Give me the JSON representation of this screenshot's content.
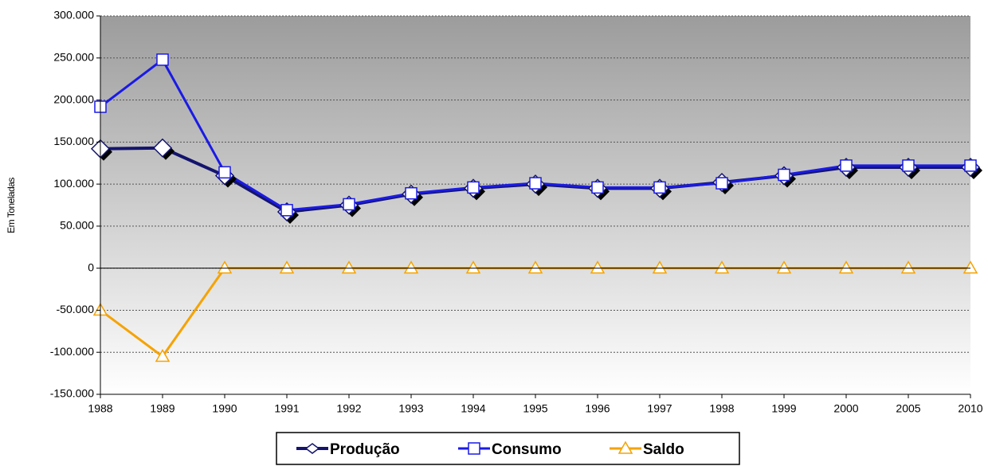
{
  "chart_data": {
    "type": "line",
    "y_label": "Em Toneladas",
    "categories": [
      "1988",
      "1989",
      "1990",
      "1991",
      "1992",
      "1993",
      "1994",
      "1995",
      "1996",
      "1997",
      "1998",
      "1999",
      "2000",
      "2005",
      "2010"
    ],
    "series": [
      {
        "name": "Produção",
        "color": "#14146e",
        "marker": "diamond",
        "values": [
          142000,
          143000,
          110000,
          67000,
          75000,
          88000,
          95000,
          100000,
          95000,
          95000,
          102000,
          110000,
          120000,
          120000,
          120000
        ]
      },
      {
        "name": "Consumo",
        "color": "#1a1ae6",
        "marker": "square",
        "values": [
          192000,
          248000,
          114000,
          69000,
          76000,
          89000,
          96000,
          101000,
          96000,
          96000,
          101000,
          111000,
          122000,
          122000,
          122000
        ]
      },
      {
        "name": "Saldo",
        "color": "#f5a300",
        "marker": "triangle",
        "values": [
          -50000,
          -105000,
          0,
          0,
          0,
          0,
          0,
          0,
          0,
          0,
          0,
          0,
          0,
          0,
          0
        ]
      }
    ],
    "ylim": [
      -150000,
      300000
    ],
    "yticks": [
      {
        "value": -150000,
        "label": "-150.000"
      },
      {
        "value": -100000,
        "label": "-100.000"
      },
      {
        "value": -50000,
        "label": "-50.000"
      },
      0,
      {
        "value": 50000,
        "label": "50.000"
      },
      {
        "value": 100000,
        "label": "100.000"
      },
      {
        "value": 150000,
        "label": "150.000"
      },
      {
        "value": 200000,
        "label": "200.000"
      },
      {
        "value": 250000,
        "label": "250.000"
      },
      {
        "value": 300000,
        "label": "300.000"
      }
    ],
    "grid": true
  }
}
